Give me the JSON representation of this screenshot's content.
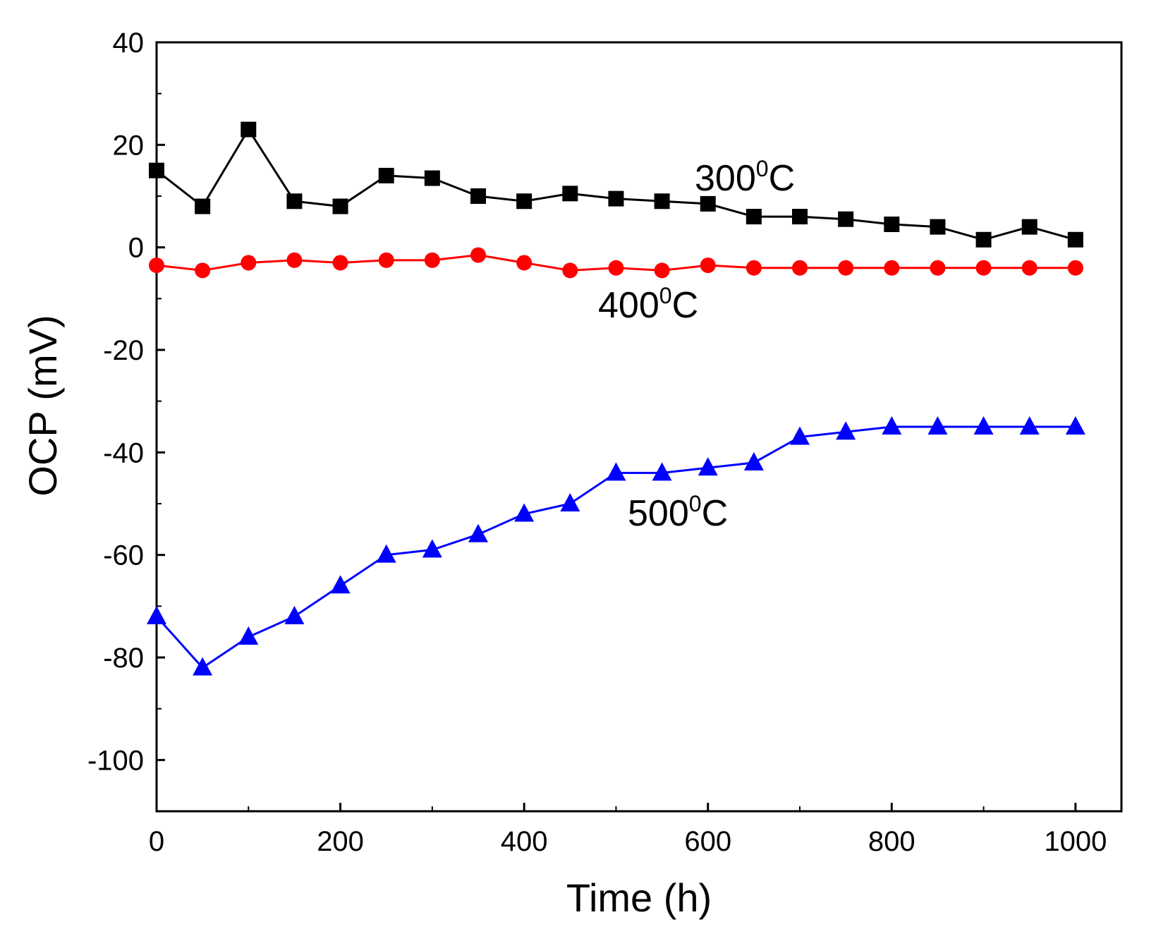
{
  "chart_data": {
    "type": "line",
    "title": "",
    "xlabel": "Time (h)",
    "ylabel": "OCP (mV)",
    "xlim": [
      0,
      1050
    ],
    "ylim": [
      -110,
      40
    ],
    "xticks": [
      0,
      200,
      400,
      600,
      800,
      1000
    ],
    "yticks": [
      40,
      20,
      0,
      -20,
      -40,
      -60,
      -80,
      -100
    ],
    "xtick_labels": [
      "0",
      "200",
      "400",
      "600",
      "800",
      "1000"
    ],
    "ytick_labels": [
      "40",
      "20",
      "0",
      "-20",
      "-40",
      "-60",
      "-80",
      "-100"
    ],
    "x": [
      0,
      50,
      100,
      150,
      200,
      250,
      300,
      350,
      400,
      450,
      500,
      550,
      600,
      650,
      700,
      750,
      800,
      850,
      900,
      950,
      1000
    ],
    "series": [
      {
        "name": "300°C",
        "label_main": "300",
        "label_sup": "0",
        "label_unit": "C",
        "color": "#000000",
        "marker": "square",
        "values": [
          15,
          8,
          23,
          9,
          8,
          14,
          13.5,
          10,
          9,
          10.5,
          9.5,
          9,
          8.5,
          6,
          6,
          5.5,
          4.5,
          4,
          1.5,
          4,
          1.5
        ]
      },
      {
        "name": "400°C",
        "label_main": "400",
        "label_sup": "0",
        "label_unit": "C",
        "color": "#ff0000",
        "marker": "circle",
        "values": [
          -3.5,
          -4.5,
          -3,
          -2.5,
          -3,
          -2.5,
          -2.5,
          -1.5,
          -3,
          -4.5,
          -4,
          -4.5,
          -3.5,
          -4,
          -4,
          -4,
          -4,
          -4,
          -4,
          -4,
          -4
        ]
      },
      {
        "name": "500°C",
        "label_main": "500",
        "label_sup": "0",
        "label_unit": "C",
        "color": "#0000ff",
        "marker": "triangle",
        "values": [
          -72,
          -82,
          -76,
          -72,
          -66,
          -60,
          -59,
          -56,
          -52,
          -50,
          -44,
          -44,
          -43,
          -42,
          -37,
          -36,
          -35,
          -35,
          -35,
          -35,
          -35
        ]
      }
    ]
  }
}
